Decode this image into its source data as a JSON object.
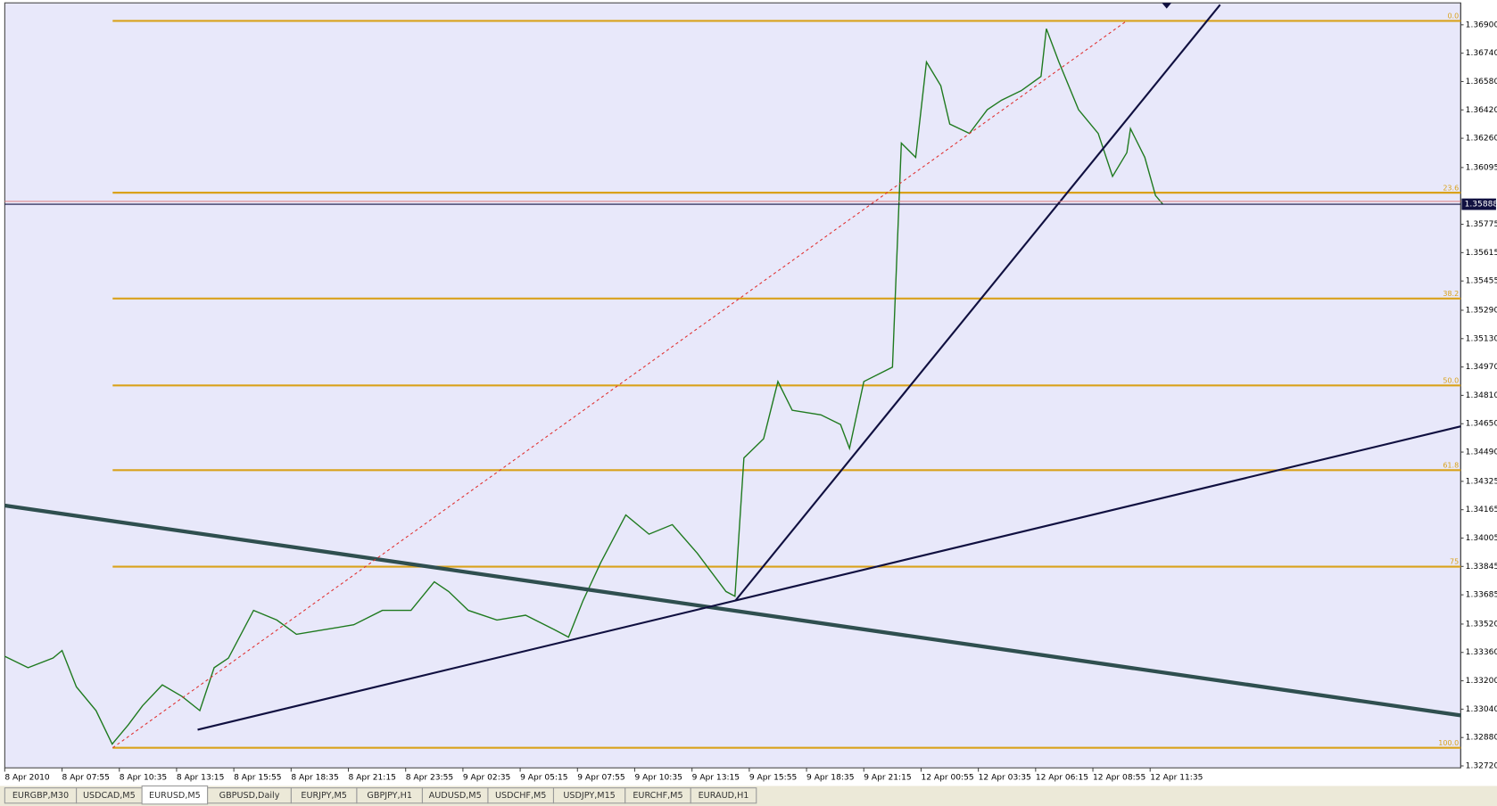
{
  "chart_data": {
    "type": "line",
    "color": "#1f7a1f",
    "x": [
      0,
      13,
      27,
      32,
      40,
      51,
      60,
      69,
      77,
      88,
      99,
      109,
      117,
      125,
      139,
      152,
      163,
      179,
      195,
      211,
      227,
      240,
      248,
      259,
      275,
      291,
      307,
      315,
      323,
      333,
      347,
      360,
      373,
      387,
      403,
      408,
      413,
      424,
      432,
      440,
      456,
      467,
      472,
      480,
      496,
      501,
      509,
      515,
      523,
      528,
      539,
      549,
      557,
      568,
      579,
      582,
      589,
      600,
      611,
      619,
      627,
      629,
      637,
      643,
      647
    ],
    "values": [
      1.33338,
      1.33274,
      1.33328,
      1.33371,
      1.33166,
      1.33032,
      1.32843,
      1.32951,
      1.33059,
      1.33177,
      1.33112,
      1.33032,
      1.33274,
      1.33328,
      1.33597,
      1.33543,
      1.33462,
      1.33489,
      1.33516,
      1.33597,
      1.33597,
      1.33758,
      1.33704,
      1.33597,
      1.33543,
      1.3357,
      1.33489,
      1.33446,
      1.3365,
      1.33866,
      1.34135,
      1.34027,
      1.34081,
      1.33919,
      1.33704,
      1.33677,
      1.34457,
      1.34565,
      1.34888,
      1.34726,
      1.347,
      1.34646,
      1.34511,
      1.34888,
      1.34969,
      1.36233,
      1.36152,
      1.3669,
      1.36556,
      1.3634,
      1.36287,
      1.36421,
      1.36475,
      1.36529,
      1.36609,
      1.36878,
      1.3669,
      1.36421,
      1.36287,
      1.36045,
      1.36179,
      1.36314,
      1.36152,
      1.35937,
      1.35889
    ],
    "xlim": [
      0,
      813
    ],
    "ylim": [
      1.32709,
      1.37013
    ],
    "xticks": [
      {
        "value": 0,
        "label": "8 Apr 2010"
      },
      {
        "value": 32,
        "label": "8 Apr 07:55"
      },
      {
        "value": 64,
        "label": "8 Apr 10:35"
      },
      {
        "value": 96,
        "label": "8 Apr 13:15"
      },
      {
        "value": 128,
        "label": "8 Apr 15:55"
      },
      {
        "value": 160,
        "label": "8 Apr 18:35"
      },
      {
        "value": 192,
        "label": "8 Apr 21:15"
      },
      {
        "value": 224,
        "label": "8 Apr 23:55"
      },
      {
        "value": 256,
        "label": "9 Apr 02:35"
      },
      {
        "value": 288,
        "label": "9 Apr 05:15"
      },
      {
        "value": 320,
        "label": "9 Apr 07:55"
      },
      {
        "value": 352,
        "label": "9 Apr 10:35"
      },
      {
        "value": 384,
        "label": "9 Apr 13:15"
      },
      {
        "value": 416,
        "label": "9 Apr 15:55"
      },
      {
        "value": 448,
        "label": "9 Apr 18:35"
      },
      {
        "value": 480,
        "label": "9 Apr 21:15"
      },
      {
        "value": 512,
        "label": "12 Apr 00:55"
      },
      {
        "value": 544,
        "label": "12 Apr 03:35"
      },
      {
        "value": 576,
        "label": "12 Apr 06:15"
      },
      {
        "value": 608,
        "label": "12 Apr 08:55"
      },
      {
        "value": 640,
        "label": "12 Apr 11:35"
      }
    ],
    "yticks": [
      {
        "value": 1.369,
        "label": "1.36900"
      },
      {
        "value": 1.3674,
        "label": "1.36740"
      },
      {
        "value": 1.3658,
        "label": "1.36580"
      },
      {
        "value": 1.3642,
        "label": "1.36420"
      },
      {
        "value": 1.3626,
        "label": "1.36260"
      },
      {
        "value": 1.36095,
        "label": "1.36095"
      },
      {
        "value": 1.35775,
        "label": "1.35775"
      },
      {
        "value": 1.35615,
        "label": "1.35615"
      },
      {
        "value": 1.35455,
        "label": "1.35455"
      },
      {
        "value": 1.3529,
        "label": "1.35290"
      },
      {
        "value": 1.3513,
        "label": "1.35130"
      },
      {
        "value": 1.3497,
        "label": "1.34970"
      },
      {
        "value": 1.3481,
        "label": "1.34810"
      },
      {
        "value": 1.3465,
        "label": "1.34650"
      },
      {
        "value": 1.3449,
        "label": "1.34490"
      },
      {
        "value": 1.34325,
        "label": "1.34325"
      },
      {
        "value": 1.34165,
        "label": "1.34165"
      },
      {
        "value": 1.34005,
        "label": "1.34005"
      },
      {
        "value": 1.33845,
        "label": "1.33845"
      },
      {
        "value": 1.33685,
        "label": "1.33685"
      },
      {
        "value": 1.3352,
        "label": "1.33520"
      },
      {
        "value": 1.3336,
        "label": "1.33360"
      },
      {
        "value": 1.332,
        "label": "1.33200"
      },
      {
        "value": 1.3304,
        "label": "1.33040"
      },
      {
        "value": 1.3288,
        "label": "1.32880"
      },
      {
        "value": 1.3272,
        "label": "1.32720"
      }
    ],
    "fib_color": "#d9a21b",
    "fib_levels": [
      {
        "label": "0.0",
        "price": 1.36922
      },
      {
        "label": "23.6",
        "price": 1.35953
      },
      {
        "label": "38.2",
        "price": 1.35356
      },
      {
        "label": "50.0",
        "price": 1.34866
      },
      {
        "label": "61.8",
        "price": 1.34388
      },
      {
        "label": 75,
        "price": 1.33844
      },
      {
        "label": "100.0",
        "price": 1.32822
      }
    ],
    "current_price": 1.35888
  },
  "tabs": {
    "items": [
      "EURGBP,M30",
      "USDCAD,M5",
      "EURUSD,M5",
      "GBPUSD,Daily",
      "EURJPY,M5",
      "GBPJPY,H1",
      "AUDUSD,M5",
      "USDCHF,M5",
      "USDJPY,M15",
      "EURCHF,M5",
      "EURAUD,H1"
    ],
    "active": 2
  }
}
